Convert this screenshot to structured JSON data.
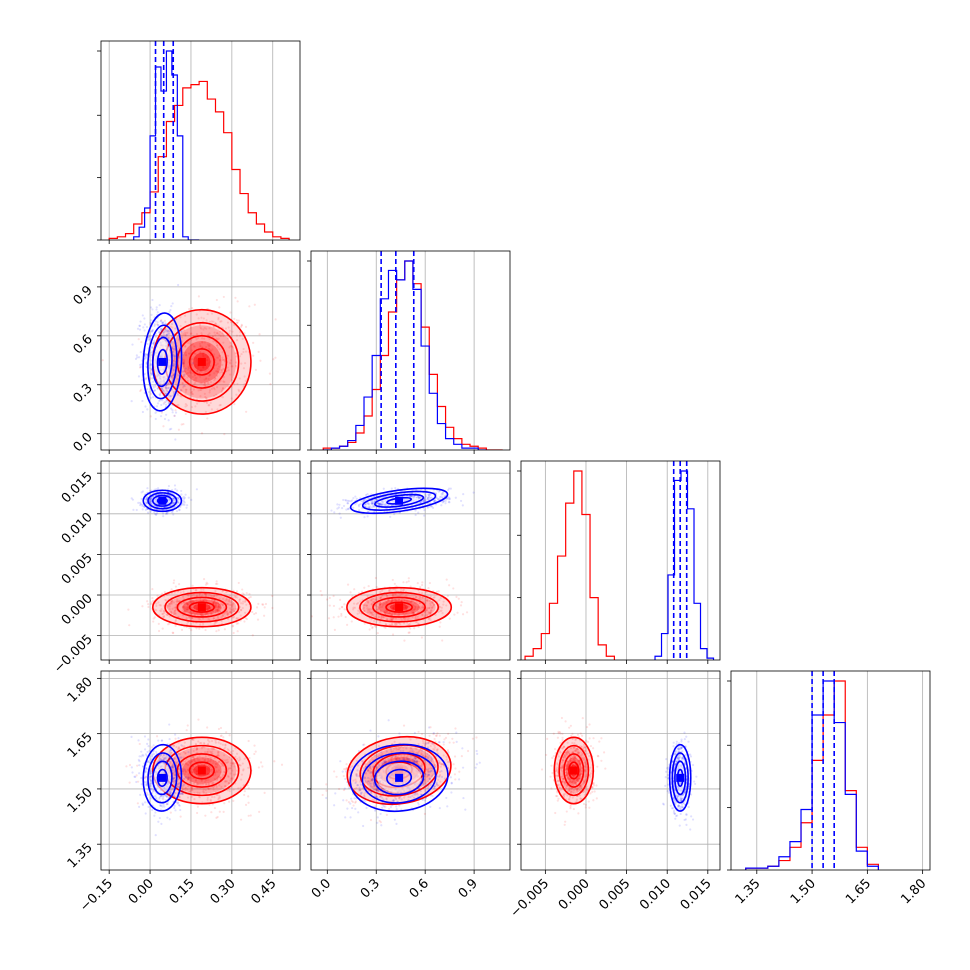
{
  "chart_data": {
    "type": "corner-plot",
    "grid": true,
    "colors": {
      "set_a": "#ff0000",
      "set_b": "#0000ff"
    },
    "parameters": [
      {
        "id": "p1",
        "range": [
          -0.18,
          0.55
        ],
        "ticks": [
          -0.15,
          0.0,
          0.15,
          0.3,
          0.45
        ],
        "tick_labels": [
          "−0.15",
          "0.00",
          "0.15",
          "0.30",
          "0.45"
        ]
      },
      {
        "id": "p2",
        "range": [
          -0.1,
          1.12
        ],
        "ticks": [
          0.0,
          0.3,
          0.6,
          0.9
        ],
        "tick_labels": [
          "0.0",
          "0.3",
          "0.6",
          "0.9"
        ]
      },
      {
        "id": "p3",
        "range": [
          -0.008,
          0.0165
        ],
        "ticks": [
          -0.005,
          0.0,
          0.005,
          0.01,
          0.015
        ],
        "tick_labels": [
          "−0.005",
          "0.000",
          "0.005",
          "0.010",
          "0.015"
        ]
      },
      {
        "id": "p4",
        "range": [
          1.28,
          1.82
        ],
        "ticks": [
          1.35,
          1.5,
          1.65,
          1.8
        ],
        "tick_labels": [
          "1.35",
          "1.50",
          "1.65",
          "1.80"
        ]
      }
    ],
    "series": [
      {
        "color": "#ff0000",
        "marginals": [
          {
            "edges": [
              -0.15,
              -0.12,
              -0.09,
              -0.06,
              -0.03,
              0.0,
              0.03,
              0.06,
              0.09,
              0.12,
              0.15,
              0.18,
              0.21,
              0.24,
              0.27,
              0.3,
              0.33,
              0.36,
              0.39,
              0.42,
              0.45,
              0.48,
              0.51
            ],
            "counts": [
              1,
              2,
              4,
              10,
              17,
              30,
              52,
              74,
              84,
              95,
              97,
              99,
              88,
              80,
              67,
              44,
              29,
              17,
              10,
              5,
              2,
              1
            ]
          },
          {
            "edges": [
              -0.025,
              0.025,
              0.075,
              0.125,
              0.175,
              0.225,
              0.275,
              0.325,
              0.375,
              0.425,
              0.475,
              0.525,
              0.575,
              0.625,
              0.675,
              0.725,
              0.775,
              0.825,
              0.875,
              0.925,
              0.975,
              1.025,
              1.075
            ],
            "counts": [
              1,
              1,
              2,
              4,
              9,
              18,
              32,
              50,
              73,
              90,
              100,
              88,
              65,
              40,
              23,
              12,
              6,
              3,
              2,
              1,
              0,
              0
            ]
          },
          {
            "edges": [
              -0.0075,
              -0.0065,
              -0.0055,
              -0.0045,
              -0.0035,
              -0.0025,
              -0.0015,
              -0.0005,
              0.0005,
              0.0015,
              0.0025,
              0.0035
            ],
            "counts": [
              2,
              6,
              14,
              30,
              55,
              83,
              100,
              77,
              33,
              8,
              2
            ]
          },
          {
            "edges": [
              1.32,
              1.35,
              1.38,
              1.41,
              1.44,
              1.47,
              1.5,
              1.53,
              1.56,
              1.59,
              1.62,
              1.65,
              1.68
            ],
            "counts": [
              1,
              1,
              2,
              5,
              12,
              25,
              58,
              82,
              100,
              42,
              12,
              3
            ]
          }
        ],
        "centers": [
          0.19,
          0.44,
          -0.0015,
          1.55
        ],
        "spreads": [
          0.09,
          0.16,
          0.0012,
          0.045
        ],
        "correlations": {
          "0-1": 0.1,
          "0-2": 0.0,
          "0-3": 0.0,
          "1-2": 0.0,
          "1-3": 0.45,
          "2-3": 0.0
        }
      },
      {
        "color": "#0000ff",
        "marginals": [
          {
            "edges": [
              -0.06,
              -0.04,
              -0.02,
              0.0,
              0.02,
              0.04,
              0.06,
              0.08,
              0.1,
              0.12,
              0.14,
              0.16,
              0.18
            ],
            "counts": [
              2,
              8,
              20,
              65,
              108,
              93,
              118,
              103,
              65,
              2,
              0,
              0
            ]
          },
          {
            "edges": [
              -0.025,
              0.025,
              0.075,
              0.125,
              0.175,
              0.225,
              0.275,
              0.325,
              0.375,
              0.425,
              0.475,
              0.525,
              0.575,
              0.625,
              0.675,
              0.725,
              0.775,
              0.825,
              0.875,
              0.925,
              0.975
            ],
            "counts": [
              0,
              1,
              2,
              5,
              13,
              28,
              50,
              80,
              95,
              90,
              100,
              85,
              55,
              30,
              14,
              6,
              3,
              1,
              1,
              0
            ]
          },
          {
            "edges": [
              0.0085,
              0.0093,
              0.0101,
              0.0109,
              0.0117,
              0.0125,
              0.0133,
              0.0141,
              0.0149,
              0.0157
            ],
            "counts": [
              2,
              14,
              45,
              95,
              100,
              80,
              30,
              6,
              1
            ]
          },
          {
            "edges": [
              1.32,
              1.35,
              1.38,
              1.41,
              1.44,
              1.47,
              1.5,
              1.53,
              1.56,
              1.59,
              1.62,
              1.65,
              1.68
            ],
            "counts": [
              1,
              1,
              2,
              7,
              15,
              32,
              82,
              100,
              78,
              40,
              10,
              2
            ]
          }
        ],
        "quantiles": [
          [
            0.02,
            0.05,
            0.085
          ],
          [
            0.33,
            0.42,
            0.53
          ],
          [
            0.0108,
            0.0116,
            0.0124
          ],
          [
            1.5,
            1.53,
            1.56
          ]
        ],
        "centers": [
          0.045,
          0.44,
          0.0116,
          1.53
        ],
        "spreads": [
          0.035,
          0.15,
          0.00065,
          0.045
        ],
        "correlations": {
          "0-1": -0.15,
          "0-2": 0.0,
          "0-3": -0.1,
          "1-2": 0.4,
          "1-3": 0.3,
          "2-3": 0.0
        }
      }
    ]
  }
}
